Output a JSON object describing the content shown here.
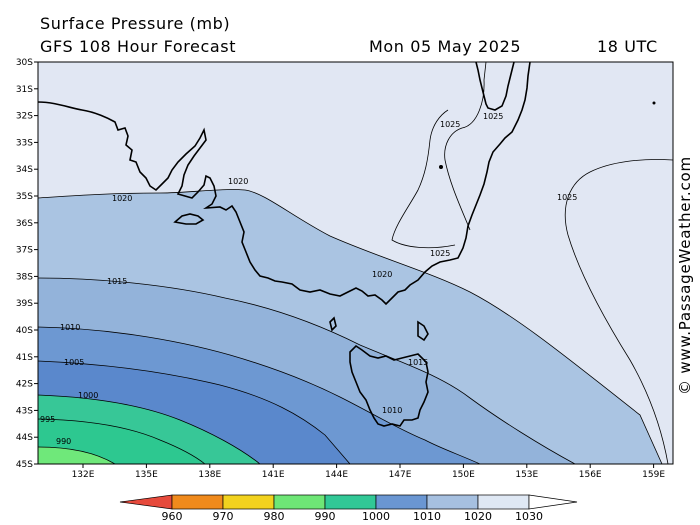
{
  "header": {
    "title": "Surface Pressure (mb)",
    "subtitle": "GFS 108 Hour Forecast",
    "date": "Mon 05 May 2025",
    "time": "18 UTC"
  },
  "credit": "© www.PassageWeather.com",
  "lat_labels": [
    "30S",
    "31S",
    "32S",
    "33S",
    "34S",
    "35S",
    "36S",
    "37S",
    "38S",
    "39S",
    "40S",
    "41S",
    "42S",
    "43S",
    "44S",
    "45S"
  ],
  "lon_labels": [
    "132E",
    "135E",
    "138E",
    "141E",
    "144E",
    "147E",
    "150E",
    "153E",
    "156E",
    "159E"
  ],
  "contour_labels": {
    "c1025_a": "1025",
    "c1025_b": "1025",
    "c1025_c": "1025",
    "c1025_d": "1025",
    "c1020_a": "1020",
    "c1020_b": "1020",
    "c1020_c": "1020",
    "c1015_a": "1015",
    "c1015_b": "1015",
    "c1010_a": "1010",
    "c1010_b": "1010",
    "c1005": "1005",
    "c1000": "1000",
    "c995": "995",
    "c990": "990"
  },
  "legend": {
    "labels": [
      "960",
      "970",
      "980",
      "990",
      "1000",
      "1010",
      "1020",
      "1030"
    ],
    "colors": [
      "#e64a3c",
      "#f08a1c",
      "#f2d21e",
      "#6ee676",
      "#31c896",
      "#6a96d2",
      "#a6c0e0",
      "#dfe8f4"
    ]
  },
  "band_colors": {
    "gt1020": "#e1e7f3",
    "b1015": "#aac4e2",
    "b1010": "#93b3da",
    "b1005": "#6d98d2",
    "b1000": "#5a88cc",
    "b995": "#37c797",
    "b990": "#2dc890",
    "lt990": "#6fe87a"
  }
}
